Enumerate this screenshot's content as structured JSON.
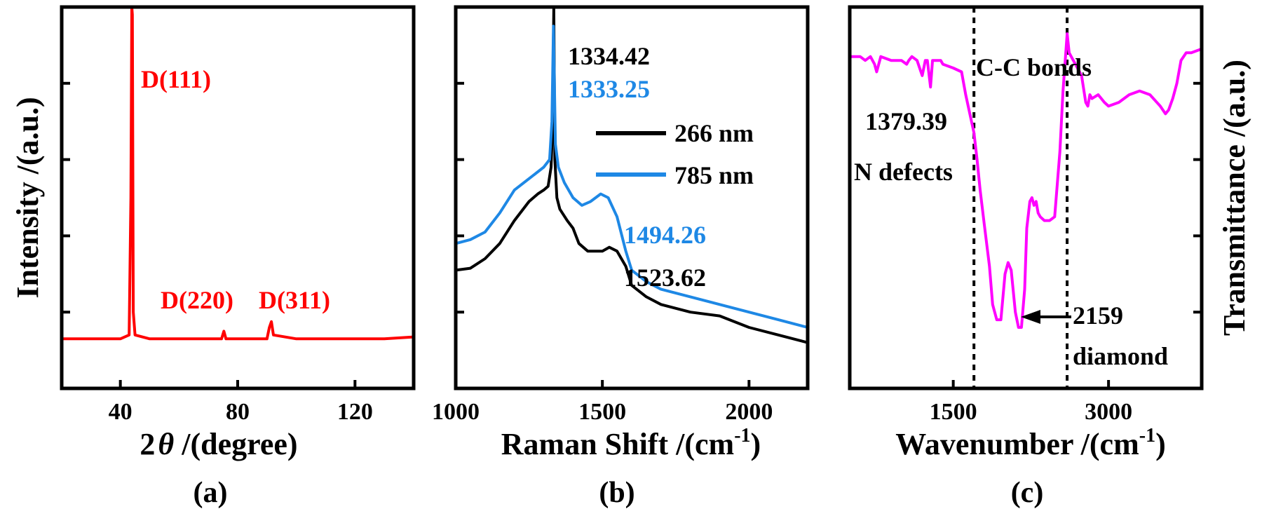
{
  "chart_data": [
    {
      "panel": "(a)",
      "type": "line",
      "xlabel_prefix": "2",
      "xlabel_symbol": "θ",
      "xlabel_suffix": " /(degree)",
      "ylabel": "Intensity /(a.u.)",
      "xlim": [
        20,
        140
      ],
      "ylim": [
        0,
        1.0
      ],
      "xticks": [
        40,
        80,
        120
      ],
      "y_tick_labels_shown": false,
      "series": [
        {
          "color": "#ff0000",
          "baseline": 0.13,
          "x": [
            20,
            30,
            40,
            43.0,
            43.6,
            43.9,
            44.1,
            44.4,
            45.0,
            50,
            60,
            70,
            74.5,
            75.3,
            76.0,
            80,
            90,
            90.8,
            91.5,
            92.2,
            100,
            110,
            120,
            130,
            140
          ],
          "y": [
            0.13,
            0.13,
            0.13,
            0.14,
            0.5,
            1.0,
            0.98,
            0.2,
            0.14,
            0.13,
            0.13,
            0.13,
            0.13,
            0.15,
            0.13,
            0.13,
            0.13,
            0.16,
            0.175,
            0.14,
            0.13,
            0.13,
            0.13,
            0.13,
            0.135
          ]
        }
      ],
      "annotations": [
        {
          "text": "D(111)",
          "x": 44,
          "y": 0.88
        },
        {
          "text": "D(220)",
          "x": 74,
          "y": 0.2
        },
        {
          "text": "D(311)",
          "x": 97,
          "y": 0.2
        }
      ]
    },
    {
      "panel": "(b)",
      "type": "line",
      "xlabel_main": "Raman Shift /(cm",
      "xlabel_sup": "-1",
      "xlabel_close": ")",
      "xlim": [
        1000,
        2200
      ],
      "ylim": [
        0,
        1.0
      ],
      "xticks": [
        1000,
        1500,
        2000
      ],
      "y_tick_labels_shown": false,
      "legend_position": "top-right",
      "series": [
        {
          "name": "266 nm",
          "color": "#000000",
          "x": [
            1000,
            1050,
            1100,
            1150,
            1200,
            1250,
            1280,
            1300,
            1315,
            1325,
            1330,
            1334.42,
            1338,
            1345,
            1355,
            1380,
            1400,
            1420,
            1450,
            1500,
            1523.62,
            1550,
            1580,
            1600,
            1650,
            1700,
            1800,
            1900,
            2000,
            2100,
            2200
          ],
          "y": [
            0.31,
            0.315,
            0.34,
            0.38,
            0.44,
            0.49,
            0.51,
            0.52,
            0.53,
            0.58,
            0.68,
            1.0,
            0.6,
            0.5,
            0.47,
            0.44,
            0.42,
            0.38,
            0.36,
            0.36,
            0.37,
            0.36,
            0.32,
            0.27,
            0.24,
            0.22,
            0.2,
            0.19,
            0.16,
            0.14,
            0.12
          ]
        },
        {
          "name": "785 nm",
          "color": "#1e88e5",
          "x": [
            1000,
            1050,
            1100,
            1150,
            1200,
            1250,
            1300,
            1320,
            1328,
            1333.25,
            1340,
            1350,
            1370,
            1400,
            1430,
            1460,
            1494.26,
            1520,
            1550,
            1580,
            1600,
            1650,
            1700,
            1800,
            1900,
            2000,
            2100,
            2200
          ],
          "y": [
            0.38,
            0.39,
            0.41,
            0.46,
            0.52,
            0.55,
            0.58,
            0.6,
            0.7,
            0.95,
            0.64,
            0.58,
            0.54,
            0.5,
            0.48,
            0.49,
            0.51,
            0.5,
            0.45,
            0.36,
            0.31,
            0.28,
            0.26,
            0.24,
            0.22,
            0.2,
            0.18,
            0.16
          ]
        }
      ],
      "annotations": [
        {
          "text": "1334.42",
          "color": "#000000"
        },
        {
          "text": "1333.25",
          "color": "#1e88e5"
        },
        {
          "text": "1494.26",
          "color": "#1e88e5"
        },
        {
          "text": "1523.62",
          "color": "#000000"
        }
      ]
    },
    {
      "panel": "(c)",
      "type": "line",
      "xlabel_main": "Wavenumber /(cm",
      "xlabel_sup": "-1",
      "xlabel_close": ")",
      "ylabel": "Transmittance /(a.u.)",
      "ylabel_side": "right",
      "xlim": [
        500,
        3900
      ],
      "ylim": [
        0,
        1.0
      ],
      "xticks": [
        1500,
        3000
      ],
      "y_tick_labels_shown": false,
      "vertical_dashed_lines": [
        1700,
        2600
      ],
      "series": [
        {
          "color": "#ff00ff",
          "x": [
            500,
            600,
            650,
            700,
            740,
            760,
            800,
            900,
            1000,
            1050,
            1070,
            1100,
            1150,
            1200,
            1230,
            1250,
            1280,
            1300,
            1330,
            1350,
            1379.39,
            1400,
            1500,
            1580,
            1620,
            1660,
            1700,
            1730,
            1760,
            1800,
            1850,
            1880,
            1920,
            1960,
            2000,
            2030,
            2060,
            2100,
            2130,
            2159,
            2190,
            2210,
            2240,
            2260,
            2280,
            2300,
            2320,
            2340,
            2380,
            2430,
            2480,
            2530,
            2560,
            2600,
            2620,
            2660,
            2700,
            2740,
            2780,
            2800,
            2820,
            2840,
            2900,
            2960,
            3000,
            3100,
            3200,
            3300,
            3400,
            3500,
            3550,
            3580,
            3620,
            3660,
            3700,
            3750,
            3800,
            3900
          ],
          "y": [
            0.87,
            0.87,
            0.86,
            0.87,
            0.85,
            0.83,
            0.87,
            0.86,
            0.86,
            0.85,
            0.86,
            0.87,
            0.86,
            0.82,
            0.86,
            0.86,
            0.79,
            0.86,
            0.86,
            0.86,
            0.86,
            0.85,
            0.84,
            0.83,
            0.77,
            0.72,
            0.67,
            0.6,
            0.52,
            0.43,
            0.32,
            0.22,
            0.18,
            0.18,
            0.3,
            0.33,
            0.31,
            0.2,
            0.16,
            0.16,
            0.26,
            0.42,
            0.49,
            0.5,
            0.48,
            0.49,
            0.46,
            0.45,
            0.44,
            0.44,
            0.45,
            0.62,
            0.78,
            0.93,
            0.88,
            0.86,
            0.84,
            0.82,
            0.75,
            0.74,
            0.77,
            0.76,
            0.77,
            0.75,
            0.74,
            0.75,
            0.77,
            0.78,
            0.77,
            0.74,
            0.72,
            0.73,
            0.76,
            0.8,
            0.86,
            0.88,
            0.88,
            0.89
          ]
        }
      ],
      "annotations": [
        {
          "text": "C-C bonds"
        },
        {
          "text": "1379.39"
        },
        {
          "text": "N defects"
        },
        {
          "text": "2159"
        },
        {
          "text": "diamond"
        }
      ]
    }
  ]
}
